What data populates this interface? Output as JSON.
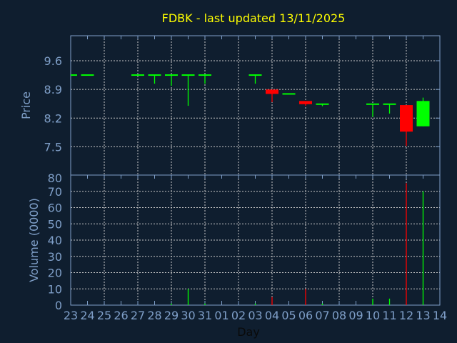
{
  "chart_data": [
    {
      "type": "candlestick",
      "title": "FDBK - last updated 13/11/2025",
      "ylabel": "Price",
      "xlabel": "Day",
      "y_ticks": [
        "9.6",
        "8.9",
        "8.2",
        "7.5"
      ],
      "y_tick_values": [
        9.6,
        8.9,
        8.2,
        7.5
      ],
      "ylim": [
        6.81,
        10.21
      ],
      "x_tick_labels": [
        "23",
        "24",
        "25",
        "26",
        "27",
        "28",
        "29",
        "30",
        "31",
        "01",
        "02",
        "03",
        "04",
        "05",
        "06",
        "07",
        "08",
        "09",
        "10",
        "11",
        "12",
        "13",
        "14"
      ],
      "grid": true,
      "candles": [
        {
          "day": "23",
          "open": 9.25,
          "high": 9.25,
          "low": 9.25,
          "close": 9.25
        },
        {
          "day": "24",
          "open": 9.25,
          "high": 9.25,
          "low": 9.25,
          "close": 9.25
        },
        {
          "day": "27",
          "open": 9.25,
          "high": 9.25,
          "low": 9.25,
          "close": 9.25
        },
        {
          "day": "28",
          "open": 9.25,
          "high": 9.25,
          "low": 9.04,
          "close": 9.25
        },
        {
          "day": "29",
          "open": 9.25,
          "high": 9.25,
          "low": 8.99,
          "close": 9.25
        },
        {
          "day": "30",
          "open": 9.25,
          "high": 9.25,
          "low": 8.5,
          "close": 9.25
        },
        {
          "day": "31",
          "open": 9.25,
          "high": 9.25,
          "low": 9.04,
          "close": 9.25
        },
        {
          "day": "03",
          "open": 9.25,
          "high": 9.25,
          "low": 9.04,
          "close": 9.25
        },
        {
          "day": "04",
          "open": 8.88,
          "high": 8.88,
          "low": 8.59,
          "close": 8.79
        },
        {
          "day": "05",
          "open": 8.79,
          "high": 8.79,
          "low": 8.79,
          "close": 8.79
        },
        {
          "day": "06",
          "open": 8.6,
          "high": 8.6,
          "low": 8.5,
          "close": 8.54
        },
        {
          "day": "07",
          "open": 8.54,
          "high": 8.54,
          "low": 8.49,
          "close": 8.54
        },
        {
          "day": "10",
          "open": 8.54,
          "high": 8.54,
          "low": 8.23,
          "close": 8.54
        },
        {
          "day": "11",
          "open": 8.54,
          "high": 8.54,
          "low": 8.31,
          "close": 8.54
        },
        {
          "day": "12",
          "open": 8.5,
          "high": 8.5,
          "low": 7.52,
          "close": 7.87
        },
        {
          "day": "13",
          "open": 8.0,
          "high": 8.7,
          "low": 8.0,
          "close": 8.6
        }
      ],
      "colors": {
        "up": "#00ff00",
        "down": "#ff0000",
        "title": "#ffff00",
        "axis": "#7f9fc8",
        "background": "#0f1e2f"
      }
    },
    {
      "type": "bar",
      "ylabel": "Volume (0000)",
      "ylim": [
        0,
        80
      ],
      "y_ticks": [
        "0",
        "10",
        "20",
        "30",
        "40",
        "50",
        "60",
        "70",
        "80"
      ],
      "y_tick_values": [
        0,
        10,
        20,
        30,
        40,
        50,
        60,
        70,
        80
      ],
      "volumes": [
        {
          "day": "29",
          "value": 1,
          "dir": "up"
        },
        {
          "day": "30",
          "value": 10,
          "dir": "up"
        },
        {
          "day": "31",
          "value": 1,
          "dir": "up"
        },
        {
          "day": "03",
          "value": 1,
          "dir": "up"
        },
        {
          "day": "04",
          "value": 5,
          "dir": "down"
        },
        {
          "day": "06",
          "value": 10,
          "dir": "down"
        },
        {
          "day": "07",
          "value": 1,
          "dir": "up"
        },
        {
          "day": "10",
          "value": 4,
          "dir": "up"
        },
        {
          "day": "11",
          "value": 4,
          "dir": "up"
        },
        {
          "day": "12",
          "value": 75,
          "dir": "down"
        },
        {
          "day": "13",
          "value": 70,
          "dir": "up"
        }
      ]
    }
  ]
}
